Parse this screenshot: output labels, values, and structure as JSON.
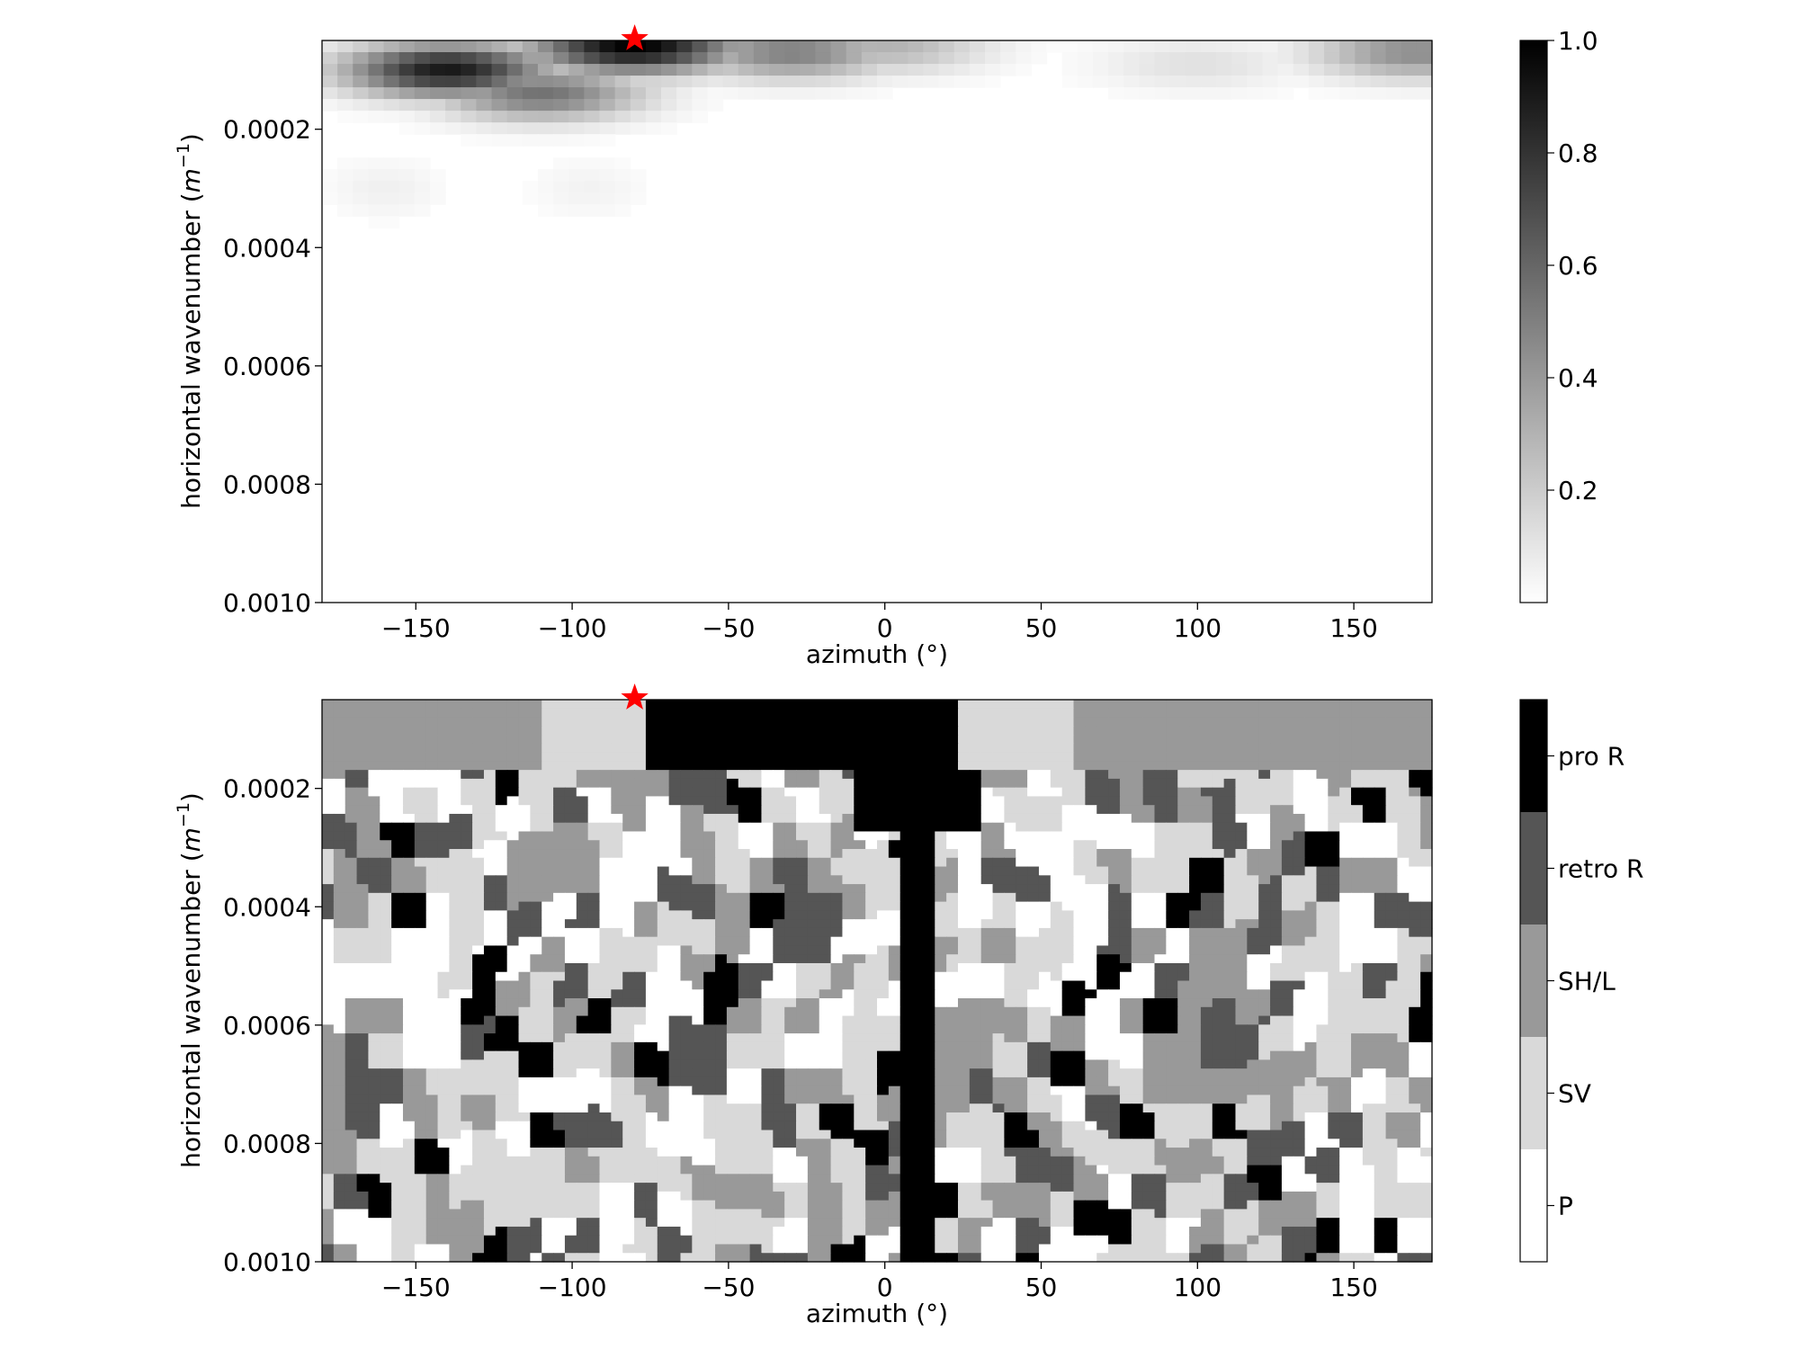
{
  "colors": {
    "marker": "#ff0000",
    "axis": "#000000",
    "background": "#ffffff",
    "class_levels": [
      "#ffffff",
      "#d9d9d9",
      "#999999",
      "#555555",
      "#000000"
    ]
  },
  "chart_data": [
    {
      "type": "heatmap",
      "xlabel": "azimuth (°)",
      "ylabel": "horizontal wavenumber (m⁻¹)",
      "x_ticks": [
        "−150",
        "−100",
        "−50",
        "0",
        "50",
        "100",
        "150"
      ],
      "x_tick_values": [
        -150,
        -100,
        -50,
        0,
        50,
        100,
        150
      ],
      "xlim": [
        -180,
        175
      ],
      "y_ticks": [
        "0.0002",
        "0.0004",
        "0.0006",
        "0.0008",
        "0.0010"
      ],
      "y_tick_values": [
        0.0002,
        0.0004,
        0.0006,
        0.0008,
        0.001
      ],
      "ylim": [
        5e-05,
        0.001
      ],
      "y_inverted": true,
      "colormap": "greys",
      "colorbar": {
        "ticks": [
          "0.2",
          "0.4",
          "0.6",
          "0.8",
          "1.0"
        ],
        "tick_values": [
          0.2,
          0.4,
          0.6,
          0.8,
          1.0
        ],
        "range": [
          0.0,
          1.0
        ]
      },
      "peaks": [
        {
          "azimuth": -80,
          "wavenumber": 6e-05,
          "value": 1.0
        },
        {
          "azimuth": -140,
          "wavenumber": 0.0001,
          "value": 0.9
        },
        {
          "azimuth": -110,
          "wavenumber": 0.00014,
          "value": 0.55
        },
        {
          "azimuth": -30,
          "wavenumber": 7e-05,
          "value": 0.5
        },
        {
          "azimuth": 0,
          "wavenumber": 6e-05,
          "value": 0.3
        },
        {
          "azimuth": 100,
          "wavenumber": 9e-05,
          "value": 0.12
        },
        {
          "azimuth": 170,
          "wavenumber": 7e-05,
          "value": 0.45
        },
        {
          "azimuth": -160,
          "wavenumber": 0.0003,
          "value": 0.06
        },
        {
          "azimuth": -95,
          "wavenumber": 0.0003,
          "value": 0.05
        }
      ],
      "marker": {
        "symbol": "star",
        "azimuth": -80,
        "wavenumber": 5e-05
      }
    },
    {
      "type": "heatmap",
      "xlabel": "azimuth (°)",
      "ylabel": "horizontal wavenumber (m⁻¹)",
      "x_ticks": [
        "−150",
        "−100",
        "−50",
        "0",
        "50",
        "100",
        "150"
      ],
      "x_tick_values": [
        -150,
        -100,
        -50,
        0,
        50,
        100,
        150
      ],
      "xlim": [
        -180,
        175
      ],
      "y_ticks": [
        "0.0002",
        "0.0004",
        "0.0006",
        "0.0008",
        "0.0010"
      ],
      "y_tick_values": [
        0.0002,
        0.0004,
        0.0006,
        0.0008,
        0.001
      ],
      "ylim": [
        5e-05,
        0.001
      ],
      "y_inverted": true,
      "colorbar": {
        "categories": [
          "P",
          "SV",
          "SH/L",
          "retro R",
          "pro R"
        ]
      },
      "top_row_classes": [
        {
          "azimuth_from": -180,
          "azimuth_to": -110,
          "class": "SH/L"
        },
        {
          "azimuth_from": -110,
          "azimuth_to": -75,
          "class": "SV"
        },
        {
          "azimuth_from": -75,
          "azimuth_to": 22,
          "class": "pro R"
        },
        {
          "azimuth_from": 22,
          "azimuth_to": 62,
          "class": "SV"
        },
        {
          "azimuth_from": 62,
          "azimuth_to": 175,
          "class": "SH/L"
        }
      ],
      "dominant_column": {
        "azimuth_from": 5,
        "azimuth_to": 15,
        "class": "pro R"
      },
      "marker": {
        "symbol": "star",
        "azimuth": -80,
        "wavenumber": 5e-05
      }
    }
  ]
}
